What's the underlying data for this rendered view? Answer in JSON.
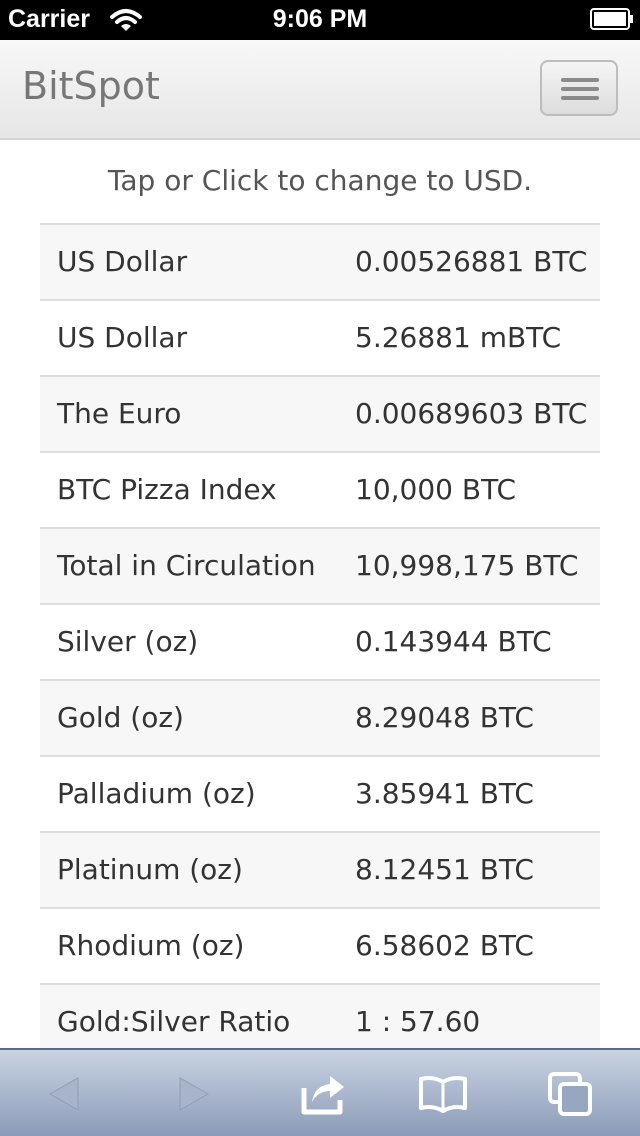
{
  "statusbar": {
    "carrier": "Carrier",
    "time": "9:06 PM"
  },
  "navbar": {
    "brand": "BitSpot"
  },
  "hint": "Tap or Click to change to USD.",
  "rows": [
    {
      "label": "US Dollar",
      "value": "0.00526881 BTC"
    },
    {
      "label": "US Dollar",
      "value": "5.26881 mBTC"
    },
    {
      "label": "The Euro",
      "value": "0.00689603 BTC"
    },
    {
      "label": "BTC Pizza Index",
      "value": "10,000 BTC"
    },
    {
      "label": "Total in Circulation",
      "value": "10,998,175 BTC"
    },
    {
      "label": "Silver (oz)",
      "value": "0.143944 BTC"
    },
    {
      "label": "Gold (oz)",
      "value": "8.29048 BTC"
    },
    {
      "label": "Palladium (oz)",
      "value": "3.85941 BTC"
    },
    {
      "label": "Platinum (oz)",
      "value": "8.12451 BTC"
    },
    {
      "label": "Rhodium (oz)",
      "value": "6.58602 BTC"
    },
    {
      "label": "Gold:Silver Ratio",
      "value": "1 : 57.60"
    }
  ],
  "toolbar": {
    "icons": [
      "back-icon",
      "forward-icon",
      "share-icon",
      "bookmarks-icon",
      "pages-icon"
    ],
    "color": "#8b9bb8"
  }
}
